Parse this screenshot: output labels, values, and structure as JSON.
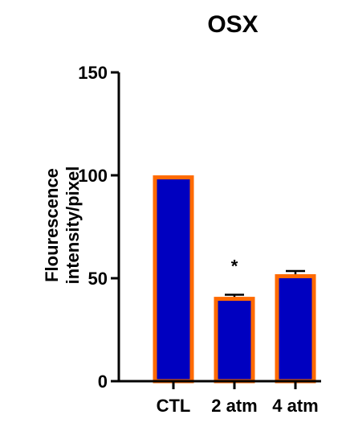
{
  "chart_data": {
    "type": "bar",
    "title": "OSX",
    "ylabel_lines": [
      "Flourescence",
      "intensity/pixel"
    ],
    "xlabel": "",
    "categories": [
      "CTL",
      "2 atm",
      "4 atm"
    ],
    "values": [
      99,
      40,
      51
    ],
    "errors": [
      0,
      2,
      2.5
    ],
    "annotations": [
      "",
      "*",
      ""
    ],
    "ylim": [
      0,
      150
    ],
    "yticks": [
      0,
      50,
      100,
      150
    ],
    "ytick_labels": [
      "0",
      "50",
      "100",
      "150"
    ],
    "grid": false,
    "colors": {
      "bar_fill": "#0000c0",
      "bar_edge": "#ff6a00",
      "axis": "#000000"
    }
  }
}
